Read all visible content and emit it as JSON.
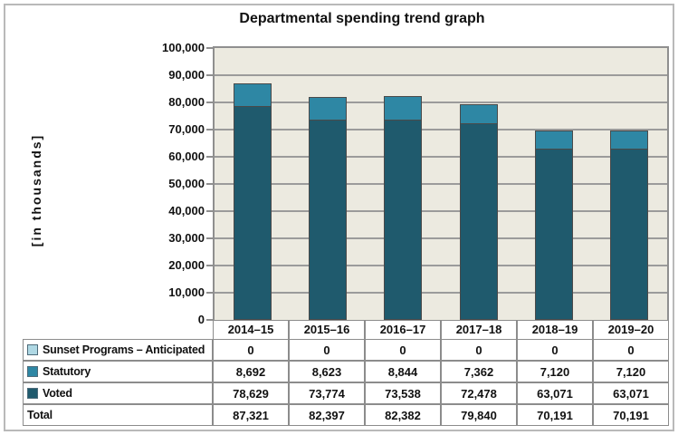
{
  "chart_data": {
    "type": "bar",
    "stacked": true,
    "title": "Departmental spending trend graph",
    "ylabel": "[in thousands]",
    "xlabel": "",
    "categories": [
      "2014–15",
      "2015–16",
      "2016–17",
      "2017–18",
      "2018–19",
      "2019–20"
    ],
    "series": [
      {
        "name": "Sunset Programs – Anticipated",
        "color": "#afd8e4",
        "values": [
          0,
          0,
          0,
          0,
          0,
          0
        ]
      },
      {
        "name": "Statutory",
        "color": "#2e87a4",
        "values": [
          8692,
          8623,
          8844,
          7362,
          7120,
          7120
        ]
      },
      {
        "name": "Voted",
        "color": "#1f5a6d",
        "values": [
          78629,
          73774,
          73538,
          72478,
          63071,
          63071
        ]
      }
    ],
    "totals_row": {
      "label": "Total",
      "values": [
        87321,
        82397,
        82382,
        79840,
        70191,
        70191
      ]
    },
    "ylim": [
      0,
      100000
    ],
    "ytick_step": 10000,
    "ytick_labels": [
      "0",
      "10,000",
      "20,000",
      "30,000",
      "40,000",
      "50,000",
      "60,000",
      "70,000",
      "80,000",
      "90,000",
      "100,000"
    ],
    "grid": true,
    "legend_position": "table-left",
    "colors": {
      "plot_background": "#eceae0",
      "gridline": "#9b9b9b",
      "bar_outline": "#4a4a4a",
      "table_border": "#8c8c8c",
      "frame_border": "#b9b9b9",
      "text": "#111111"
    }
  }
}
